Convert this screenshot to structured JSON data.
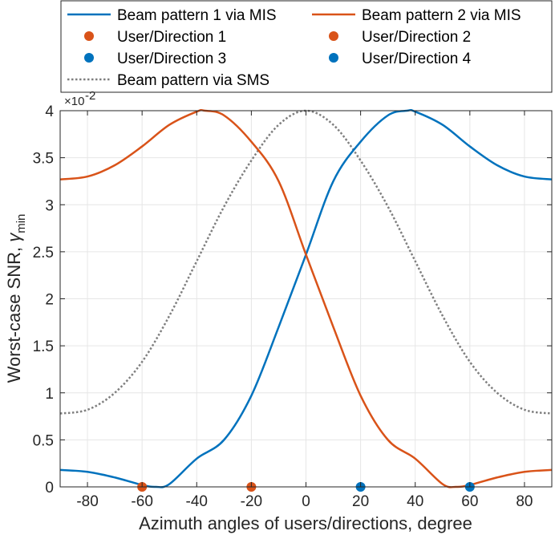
{
  "chart_data": {
    "type": "line",
    "xlabel": "Azimuth angles of users/directions, degree",
    "ylabel_main": "Worst-case SNR, ",
    "ylabel_symbol": "γ",
    "ylabel_subscript": "min",
    "y_exponent_base": "×10",
    "y_exponent_power": "-2",
    "xlim": [
      -90,
      90
    ],
    "ylim": [
      0,
      4
    ],
    "xticks": [
      -80,
      -60,
      -40,
      -20,
      0,
      20,
      40,
      60,
      80
    ],
    "yticks": [
      0,
      0.5,
      1,
      1.5,
      2,
      2.5,
      3,
      3.5,
      4
    ],
    "ytick_labels": [
      "0",
      "0.5",
      "1",
      "1.5",
      "2",
      "2.5",
      "3",
      "3.5",
      "4"
    ],
    "grid": true,
    "legend_position": "top, above plot, two columns",
    "series": [
      {
        "name": "Beam pattern 1 via MIS",
        "color": "#0072BD",
        "style": "solid",
        "x": [
          -90,
          -80,
          -70,
          -60,
          -55,
          -50,
          -40,
          -30,
          -20,
          -10,
          0,
          10,
          20,
          30,
          37,
          40,
          50,
          60,
          70,
          80,
          90
        ],
        "y": [
          0.18,
          0.16,
          0.1,
          0.02,
          0.0,
          0.03,
          0.3,
          0.5,
          0.97,
          1.7,
          2.47,
          3.25,
          3.67,
          3.95,
          4.0,
          3.99,
          3.85,
          3.62,
          3.42,
          3.3,
          3.27
        ]
      },
      {
        "name": "Beam pattern 2 via MIS",
        "color": "#D95319",
        "style": "solid",
        "x": [
          -90,
          -80,
          -70,
          -60,
          -50,
          -40,
          -37,
          -30,
          -20,
          -10,
          0,
          10,
          20,
          30,
          40,
          50,
          55,
          60,
          70,
          80,
          90
        ],
        "y": [
          3.27,
          3.3,
          3.42,
          3.62,
          3.85,
          3.99,
          4.0,
          3.95,
          3.67,
          3.25,
          2.47,
          1.7,
          0.97,
          0.5,
          0.3,
          0.03,
          0.0,
          0.02,
          0.1,
          0.16,
          0.18
        ]
      },
      {
        "name": "Beam pattern via SMS",
        "color": "#7F7F7F",
        "style": "dotted",
        "x": [
          -90,
          -80,
          -70,
          -60,
          -50,
          -40,
          -30,
          -20,
          -10,
          0,
          10,
          20,
          30,
          40,
          50,
          60,
          70,
          80,
          90
        ],
        "y": [
          0.78,
          0.82,
          1.0,
          1.33,
          1.82,
          2.4,
          2.98,
          3.47,
          3.85,
          4.0,
          3.85,
          3.47,
          2.98,
          2.4,
          1.82,
          1.33,
          1.0,
          0.82,
          0.78
        ]
      }
    ],
    "markers": [
      {
        "name": "User/Direction 1",
        "color": "#D95319",
        "points": [
          [
            -60,
            0
          ],
          [
            -20,
            0
          ]
        ]
      },
      {
        "name": "User/Direction 2",
        "color": "#D95319",
        "points": []
      },
      {
        "name": "User/Direction 3",
        "color": "#0072BD",
        "points": [
          [
            20,
            0
          ],
          [
            60,
            0
          ]
        ]
      },
      {
        "name": "User/Direction 4",
        "color": "#0072BD",
        "points": []
      }
    ],
    "legend": [
      {
        "label": "Beam pattern 1 via MIS",
        "kind": "line",
        "color": "#0072BD",
        "style": "solid"
      },
      {
        "label": "Beam pattern 2 via MIS",
        "kind": "line",
        "color": "#D95319",
        "style": "solid"
      },
      {
        "label": "User/Direction 1",
        "kind": "marker",
        "color": "#D95319"
      },
      {
        "label": "User/Direction 2",
        "kind": "marker",
        "color": "#D95319"
      },
      {
        "label": "User/Direction 3",
        "kind": "marker",
        "color": "#0072BD"
      },
      {
        "label": "User/Direction 4",
        "kind": "marker",
        "color": "#0072BD"
      },
      {
        "label": "Beam pattern via SMS",
        "kind": "line",
        "color": "#7F7F7F",
        "style": "dotted"
      }
    ]
  }
}
